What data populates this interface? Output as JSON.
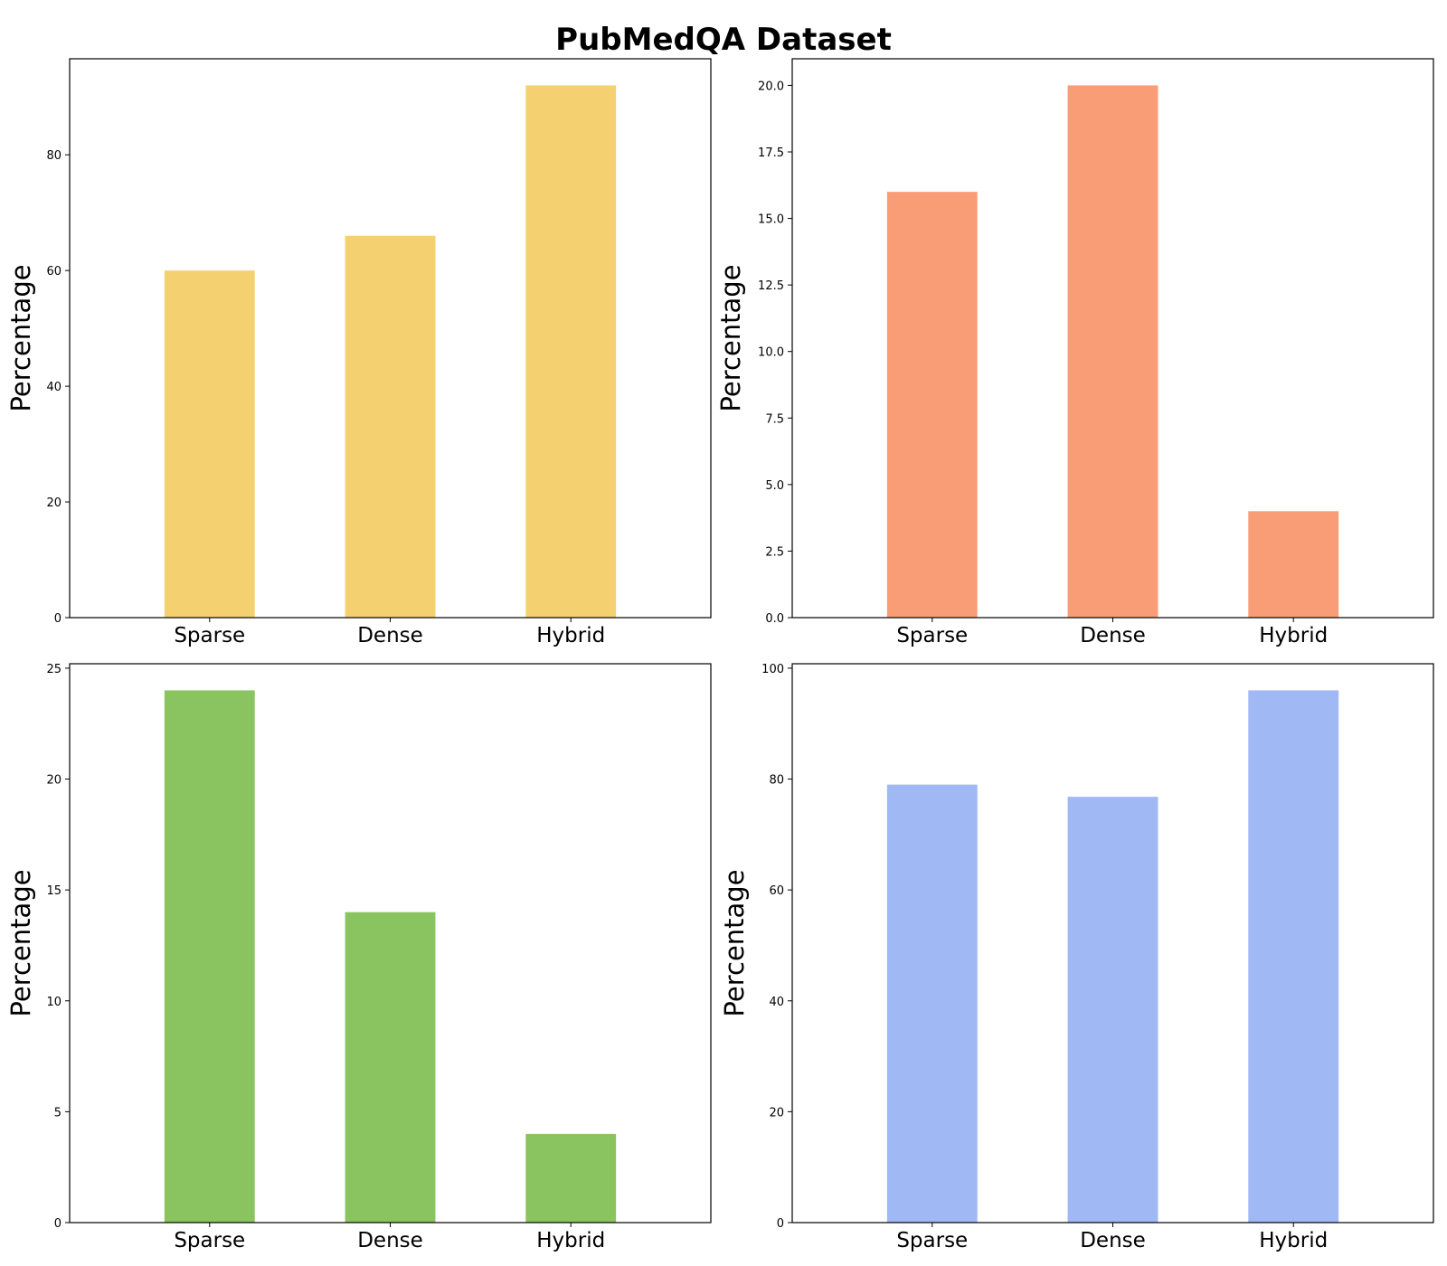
{
  "figure": {
    "title": "PubMedQA Dataset"
  },
  "chart_data": [
    {
      "type": "bar",
      "categories": [
        "Sparse",
        "Dense",
        "Hybrid"
      ],
      "values": [
        60,
        66,
        92
      ],
      "color": "#F5D070",
      "ylabel": "Percentage",
      "ylim": [
        0,
        96.6
      ],
      "yticks": [
        0,
        20,
        40,
        60,
        80
      ],
      "ytick_labels": [
        "0",
        "20",
        "40",
        "60",
        "80"
      ],
      "grid": false
    },
    {
      "type": "bar",
      "categories": [
        "Sparse",
        "Dense",
        "Hybrid"
      ],
      "values": [
        16,
        20,
        4
      ],
      "color": "#F99D76",
      "ylabel": "Percentage",
      "ylim": [
        0,
        21
      ],
      "yticks": [
        0,
        2.5,
        5,
        7.5,
        10,
        12.5,
        15,
        17.5,
        20
      ],
      "ytick_labels": [
        "0.0",
        "2.5",
        "5.0",
        "7.5",
        "10.0",
        "12.5",
        "15.0",
        "17.5",
        "20.0"
      ],
      "grid": false
    },
    {
      "type": "bar",
      "categories": [
        "Sparse",
        "Dense",
        "Hybrid"
      ],
      "values": [
        24,
        14,
        4
      ],
      "color": "#8AC460",
      "ylabel": "Percentage",
      "ylim": [
        0,
        25.2
      ],
      "yticks": [
        0,
        5,
        10,
        15,
        20,
        25
      ],
      "ytick_labels": [
        "0",
        "5",
        "10",
        "15",
        "20",
        "25"
      ],
      "grid": false
    },
    {
      "type": "bar",
      "categories": [
        "Sparse",
        "Dense",
        "Hybrid"
      ],
      "values": [
        79,
        76.8,
        96
      ],
      "color": "#A0B8F3",
      "ylabel": "Percentage",
      "ylim": [
        0,
        100.8
      ],
      "yticks": [
        0,
        20,
        40,
        60,
        80,
        100
      ],
      "ytick_labels": [
        "0",
        "20",
        "40",
        "60",
        "80",
        "100"
      ],
      "grid": false
    }
  ]
}
